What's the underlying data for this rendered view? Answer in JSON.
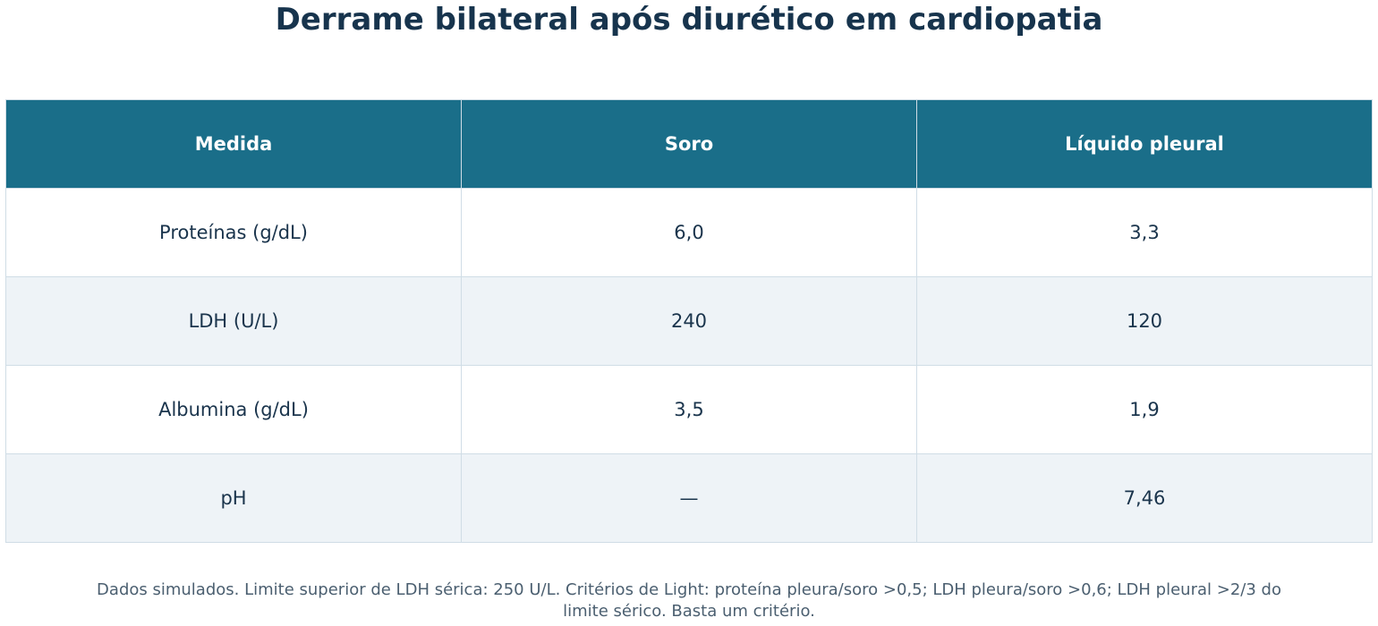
{
  "chart_data": {
    "type": "table",
    "title": "Derrame bilateral após diurético em cardiopatia",
    "columns": [
      "Medida",
      "Soro",
      "Líquido pleural"
    ],
    "rows": [
      [
        "Proteínas (g/dL)",
        "6,0",
        "3,3"
      ],
      [
        "LDH (U/L)",
        "240",
        "120"
      ],
      [
        "Albumina (g/dL)",
        "3,5",
        "1,9"
      ],
      [
        "pH",
        "—",
        "7,46"
      ]
    ],
    "footnote": "Dados simulados. Limite superior de LDH sérica: 250 U/L. Critérios de Light: proteína pleura/soro >0,5; LDH pleura/soro >0,6; LDH pleural >2/3 do limite sérico. Basta um critério."
  },
  "colors": {
    "header_bg": "#1a6e89",
    "header_text": "#ffffff",
    "row_alt_bg": "#eef3f7",
    "border": "#d0dde6",
    "title_text": "#17344d"
  }
}
